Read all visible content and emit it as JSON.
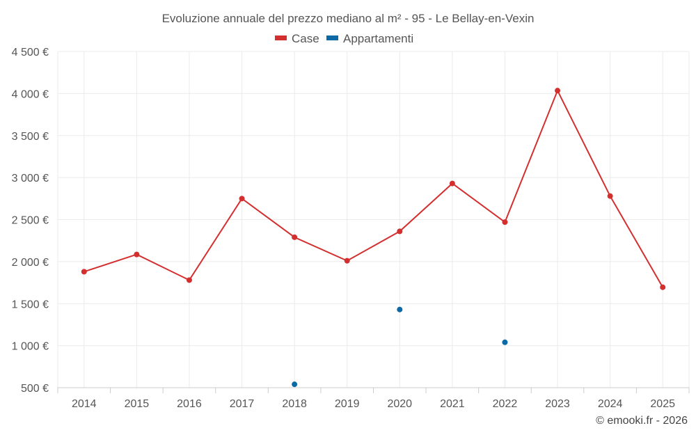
{
  "chart_data": {
    "type": "line",
    "title": "Evoluzione annuale del prezzo mediano al m² - 95 - Le Bellay-en-Vexin",
    "categories": [
      "2014",
      "2015",
      "2016",
      "2017",
      "2018",
      "2019",
      "2020",
      "2021",
      "2022",
      "2023",
      "2024",
      "2025"
    ],
    "ylim": [
      500,
      4500
    ],
    "yticks": [
      500,
      1000,
      1500,
      2000,
      2500,
      3000,
      3500,
      4000,
      4500
    ],
    "ytick_labels": [
      "500 €",
      "1 000 €",
      "1 500 €",
      "2 000 €",
      "2 500 €",
      "3 000 €",
      "3 500 €",
      "4 000 €",
      "4 500 €"
    ],
    "series": [
      {
        "name": "Case",
        "color": "#d32f2f",
        "values": [
          1880,
          2085,
          1780,
          2750,
          2290,
          2010,
          2360,
          2930,
          2470,
          4035,
          2780,
          1695
        ]
      },
      {
        "name": "Appartamenti",
        "color": "#0b6aa6",
        "values": [
          null,
          null,
          null,
          null,
          540,
          null,
          1430,
          null,
          1040,
          null,
          null,
          null
        ]
      }
    ],
    "grid": true,
    "legend": "top-center"
  },
  "credit": "© emooki.fr - 2026"
}
